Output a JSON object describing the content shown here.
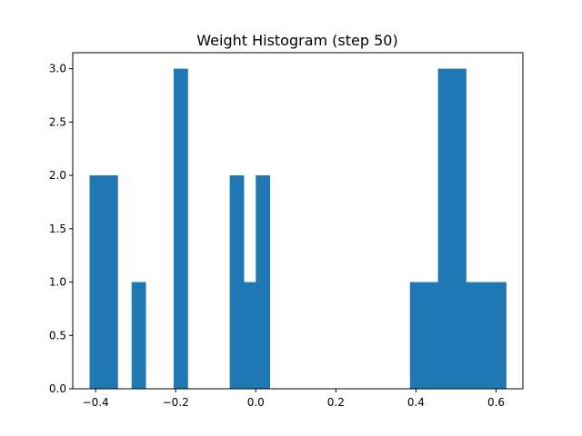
{
  "chart_data": {
    "type": "bar",
    "title": "Weight Histogram (step 50)",
    "xlabel": "",
    "ylabel": "",
    "xlim": [
      -0.457,
      0.667
    ],
    "ylim": [
      0,
      3.15
    ],
    "bin_edges": [
      -0.415,
      -0.38,
      -0.345,
      -0.31,
      -0.275,
      -0.24,
      -0.205,
      -0.17,
      -0.135,
      -0.1,
      -0.065,
      -0.03,
      0.0,
      0.035,
      0.07,
      0.105,
      0.14,
      0.175,
      0.21,
      0.245,
      0.28,
      0.315,
      0.35,
      0.385,
      0.42,
      0.455,
      0.49,
      0.525,
      0.56,
      0.59,
      0.625
    ],
    "counts": [
      2,
      2,
      0,
      1,
      0,
      0,
      3,
      0,
      0,
      0,
      2,
      1,
      2,
      0,
      0,
      0,
      0,
      0,
      0,
      0,
      0,
      0,
      0,
      1,
      1,
      3,
      3,
      1,
      1,
      1
    ],
    "xticks": [
      -0.4,
      -0.2,
      0.0,
      0.2,
      0.4,
      0.6
    ],
    "xtick_labels": [
      "−0.4",
      "−0.2",
      "0.0",
      "0.2",
      "0.4",
      "0.6"
    ],
    "yticks": [
      0.0,
      0.5,
      1.0,
      1.5,
      2.0,
      2.5,
      3.0
    ],
    "ytick_labels": [
      "0.0",
      "0.5",
      "1.0",
      "1.5",
      "2.0",
      "2.5",
      "3.0"
    ],
    "bar_color": "#1f77b4",
    "grid": false,
    "legend": "none"
  }
}
